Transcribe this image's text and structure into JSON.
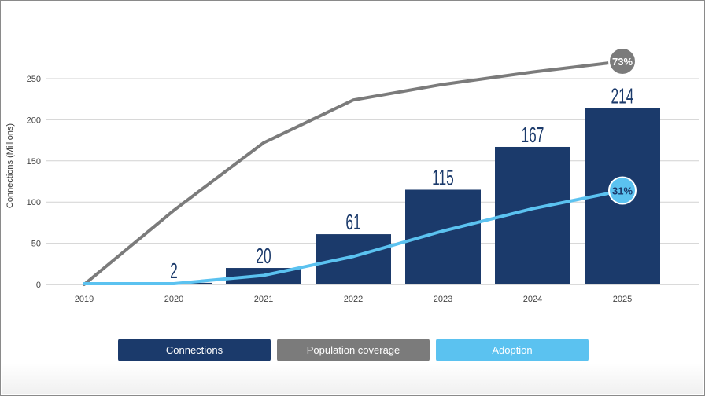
{
  "chart_data": {
    "type": "bar+line",
    "ylabel": "Connections (Millions)",
    "ylim": [
      0,
      250
    ],
    "yticks": [
      0,
      50,
      100,
      150,
      200,
      250
    ],
    "categories": [
      "2019",
      "2020",
      "2021",
      "2022",
      "2023",
      "2024",
      "2025"
    ],
    "series": [
      {
        "name": "Connections",
        "kind": "bar",
        "color": "#1b3a6b",
        "values": [
          0,
          2,
          20,
          61,
          115,
          167,
          214
        ],
        "labels": [
          "",
          "2",
          "20",
          "61",
          "115",
          "167",
          "214"
        ]
      },
      {
        "name": "Population coverage",
        "kind": "line",
        "color": "#7b7b7b",
        "values": [
          0,
          90,
          172,
          224,
          243,
          258,
          271
        ],
        "end_badge": "73%"
      },
      {
        "name": "Adoption",
        "kind": "line",
        "color": "#5bc2f0",
        "values": [
          1,
          1,
          11,
          34,
          65,
          92,
          114
        ],
        "end_badge": "31%"
      }
    ],
    "grid": true,
    "legend_position": "bottom"
  }
}
